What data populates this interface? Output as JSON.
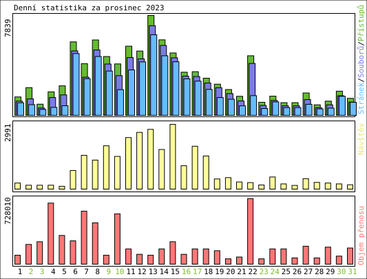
{
  "title": "Denní statistika za prosinec 2023",
  "colors": {
    "hits": "#66bb33",
    "files": "#7b7be6",
    "pages": "#66bbff",
    "visits": "#ffff99",
    "kbytes": "#ff7777",
    "weekend": "#7fbf30",
    "axis": "#000000",
    "frame": "#ffffff"
  },
  "chart_data": [
    {
      "type": "bar",
      "panel": "top",
      "ytick_label": "7839",
      "ylim": [
        0,
        7839
      ],
      "legend": [
        "Stránek",
        "Souborů",
        "Přístupů"
      ],
      "categories": [
        "1",
        "2",
        "3",
        "4",
        "5",
        "6",
        "7",
        "8",
        "9",
        "10",
        "11",
        "12",
        "13",
        "14",
        "15",
        "16",
        "17",
        "18",
        "19",
        "20",
        "21",
        "22",
        "23",
        "24",
        "25",
        "26",
        "27",
        "28",
        "29",
        "30",
        "31"
      ],
      "series": [
        {
          "name": "Přístupů",
          "values": [
            1450,
            2180,
            880,
            1850,
            2320,
            5770,
            4060,
            5920,
            4620,
            4040,
            5430,
            5050,
            7840,
            5930,
            4900,
            3390,
            3430,
            2920,
            2450,
            2030,
            1500,
            4680,
            1030,
            1510,
            1000,
            1000,
            1760,
            830,
            1120,
            1900,
            1340
          ]
        },
        {
          "name": "Souborů",
          "values": [
            1120,
            1300,
            580,
            1400,
            1610,
            5060,
            3000,
            5130,
            4030,
            3120,
            4540,
            4440,
            7040,
            5490,
            4520,
            3080,
            3050,
            2540,
            2170,
            1710,
            1130,
            4080,
            780,
            1170,
            750,
            750,
            1240,
            610,
            830,
            1540,
            1040
          ]
        },
        {
          "name": "Stránek",
          "values": [
            990,
            840,
            470,
            630,
            760,
            4850,
            2880,
            4620,
            3480,
            2020,
            3570,
            4200,
            6330,
            4680,
            4210,
            2870,
            2690,
            2040,
            1400,
            1270,
            750,
            1550,
            540,
            1060,
            610,
            610,
            870,
            510,
            570,
            1500,
            1030
          ]
        }
      ]
    },
    {
      "type": "bar",
      "panel": "middle",
      "ytick_label": "2991",
      "ylim": [
        0,
        2991
      ],
      "legend": [
        "Návštěv"
      ],
      "categories": [
        "1",
        "2",
        "3",
        "4",
        "5",
        "6",
        "7",
        "8",
        "9",
        "10",
        "11",
        "12",
        "13",
        "14",
        "15",
        "16",
        "17",
        "18",
        "19",
        "20",
        "21",
        "22",
        "23",
        "24",
        "25",
        "26",
        "27",
        "28",
        "29",
        "30",
        "31"
      ],
      "series": [
        {
          "name": "Návštěv",
          "values": [
            280,
            180,
            180,
            180,
            130,
            860,
            1560,
            1340,
            2000,
            1510,
            2380,
            2620,
            2760,
            1830,
            2990,
            1080,
            1980,
            1530,
            470,
            530,
            330,
            300,
            190,
            560,
            240,
            170,
            480,
            310,
            280,
            240,
            200
          ]
        }
      ]
    },
    {
      "type": "bar",
      "panel": "bottom",
      "ytick_label": "728010",
      "ylim": [
        0,
        728010
      ],
      "legend": [
        "Objem přenosu"
      ],
      "categories": [
        "1",
        "2",
        "3",
        "4",
        "5",
        "6",
        "7",
        "8",
        "9",
        "10",
        "11",
        "12",
        "13",
        "14",
        "15",
        "16",
        "17",
        "18",
        "19",
        "20",
        "21",
        "22",
        "23",
        "24",
        "25",
        "26",
        "27",
        "28",
        "29",
        "30",
        "31"
      ],
      "series": [
        {
          "name": "Objem přenosu",
          "values": [
            100000,
            220000,
            250000,
            680000,
            320000,
            260000,
            590000,
            460000,
            100000,
            560000,
            170000,
            110000,
            100000,
            170000,
            250000,
            110000,
            170000,
            170000,
            150000,
            60000,
            80000,
            730000,
            60000,
            170000,
            170000,
            70000,
            200000,
            70000,
            190000,
            90000,
            180000
          ]
        }
      ]
    }
  ],
  "x_labels": [
    "1",
    "2",
    "3",
    "4",
    "5",
    "6",
    "7",
    "8",
    "9",
    "10",
    "11",
    "12",
    "13",
    "14",
    "15",
    "16",
    "17",
    "18",
    "19",
    "20",
    "21",
    "22",
    "23",
    "24",
    "25",
    "26",
    "27",
    "28",
    "29",
    "30",
    "31"
  ],
  "weekend_days": [
    2,
    3,
    9,
    10,
    16,
    17,
    23,
    24,
    30,
    31
  ]
}
